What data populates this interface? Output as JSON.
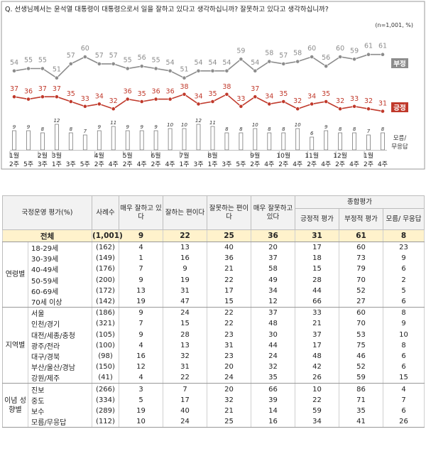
{
  "question": "Q. 선생님께서는 윤석열 대통령이 대통령으로서 일을 잘하고 있다고 생각하십니까? 잘못하고 있다고 생각하십니까?",
  "note": "(n=1,001, %)",
  "chart_data": {
    "type": "line",
    "x": [
      "1월 2주",
      "1월 5주",
      "2월 3주",
      "3월 1주",
      "3월 3주",
      "3월 5주",
      "4월 2주",
      "4월 4주",
      "5월 2주",
      "5월 4주",
      "6월 2주",
      "6월 4주",
      "7월 1주",
      "7월 3주",
      "8월 1주",
      "8월 3주",
      "8월 5주",
      "9월 2주",
      "9월 4주",
      "10월 2주",
      "10월 4주",
      "11월 2주",
      "11월 4주",
      "12월 2주",
      "12월 4주",
      "1월 2주",
      "1월 4주"
    ],
    "x_month_labels": [
      "1월",
      "2월",
      "3월",
      "4월",
      "5월",
      "6월",
      "7월",
      "8월",
      "9월",
      "10월",
      "11월",
      "12월",
      "1월"
    ],
    "x_week_labels": [
      "2주",
      "5주",
      "3주",
      "1주",
      "3주",
      "5주",
      "2주",
      "4주",
      "2주",
      "4주",
      "2주",
      "4주",
      "1주",
      "3주",
      "1주",
      "3주",
      "5주",
      "2주",
      "4주",
      "2주",
      "4주",
      "2주",
      "4주",
      "2주",
      "4주",
      "2주",
      "4주"
    ],
    "series": [
      {
        "name": "부정",
        "color": "#8c8c8c",
        "values": [
          54,
          55,
          55,
          51,
          57,
          60,
          57,
          57,
          55,
          56,
          55,
          54,
          51,
          54,
          54,
          54,
          59,
          54,
          58,
          57,
          58,
          60,
          56,
          60,
          59,
          61,
          61
        ]
      },
      {
        "name": "긍정",
        "color": "#c0392b",
        "values": [
          37,
          36,
          37,
          37,
          35,
          33,
          34,
          32,
          36,
          35,
          36,
          36,
          38,
          34,
          35,
          38,
          33,
          37,
          34,
          35,
          32,
          34,
          35,
          32,
          33,
          32,
          31
        ]
      },
      {
        "name": "모름/\n무응답",
        "color": "#555555",
        "values": [
          9,
          9,
          8,
          12,
          8,
          7,
          9,
          11,
          9,
          9,
          9,
          10,
          10,
          12,
          11,
          8,
          8,
          10,
          8,
          8,
          10,
          6,
          9,
          8,
          8,
          7,
          8
        ]
      }
    ]
  },
  "table": {
    "col_headers": [
      "국정운영 평가(%)",
      "사례수",
      "매우 잘하고 있다",
      "잘하는 편이다",
      "잘못하는 편이다",
      "매우 잘못하고 있다",
      "긍정적 평가",
      "부정적 평가",
      "모름/ 무응답"
    ],
    "group_header": "종합평가",
    "total": {
      "label": "전체",
      "n": "(1,001)",
      "v": [
        "9",
        "22",
        "25",
        "36",
        "31",
        "61",
        "8"
      ]
    },
    "groups": [
      {
        "name": "연령별",
        "rows": [
          {
            "label": "18-29세",
            "n": "(162)",
            "v": [
              "4",
              "13",
              "40",
              "20",
              "17",
              "60",
              "23"
            ]
          },
          {
            "label": "30-39세",
            "n": "(149)",
            "v": [
              "1",
              "16",
              "36",
              "37",
              "18",
              "73",
              "9"
            ]
          },
          {
            "label": "40-49세",
            "n": "(176)",
            "v": [
              "7",
              "9",
              "21",
              "58",
              "15",
              "79",
              "6"
            ]
          },
          {
            "label": "50-59세",
            "n": "(200)",
            "v": [
              "9",
              "19",
              "22",
              "49",
              "28",
              "70",
              "2"
            ]
          },
          {
            "label": "60-69세",
            "n": "(172)",
            "v": [
              "13",
              "31",
              "17",
              "34",
              "44",
              "52",
              "5"
            ]
          },
          {
            "label": "70세 이상",
            "n": "(142)",
            "v": [
              "19",
              "47",
              "15",
              "12",
              "66",
              "27",
              "6"
            ]
          }
        ]
      },
      {
        "name": "지역별",
        "rows": [
          {
            "label": "서울",
            "n": "(186)",
            "v": [
              "9",
              "24",
              "22",
              "37",
              "33",
              "60",
              "8"
            ]
          },
          {
            "label": "인천/경기",
            "n": "(321)",
            "v": [
              "7",
              "15",
              "22",
              "48",
              "21",
              "70",
              "9"
            ]
          },
          {
            "label": "대전/세종/충청",
            "n": "(105)",
            "v": [
              "9",
              "28",
              "23",
              "30",
              "37",
              "53",
              "10"
            ]
          },
          {
            "label": "광주/전라",
            "n": "(100)",
            "v": [
              "4",
              "13",
              "31",
              "44",
              "17",
              "75",
              "8"
            ]
          },
          {
            "label": "대구/경북",
            "n": "(98)",
            "v": [
              "16",
              "32",
              "23",
              "24",
              "48",
              "46",
              "6"
            ]
          },
          {
            "label": "부산/울산/경남",
            "n": "(150)",
            "v": [
              "12",
              "31",
              "20",
              "32",
              "42",
              "52",
              "6"
            ]
          },
          {
            "label": "강원/제주",
            "n": "(41)",
            "v": [
              "4",
              "22",
              "24",
              "35",
              "26",
              "59",
              "15"
            ]
          }
        ]
      },
      {
        "name": "이념 성향별",
        "rows": [
          {
            "label": "진보",
            "n": "(266)",
            "v": [
              "3",
              "7",
              "20",
              "66",
              "10",
              "86",
              "4"
            ]
          },
          {
            "label": "중도",
            "n": "(334)",
            "v": [
              "5",
              "17",
              "32",
              "39",
              "22",
              "71",
              "7"
            ]
          },
          {
            "label": "보수",
            "n": "(289)",
            "v": [
              "19",
              "40",
              "21",
              "14",
              "59",
              "35",
              "6"
            ]
          },
          {
            "label": "모름/무응답",
            "n": "(112)",
            "v": [
              "10",
              "24",
              "25",
              "16",
              "34",
              "41",
              "26"
            ]
          }
        ]
      }
    ]
  }
}
